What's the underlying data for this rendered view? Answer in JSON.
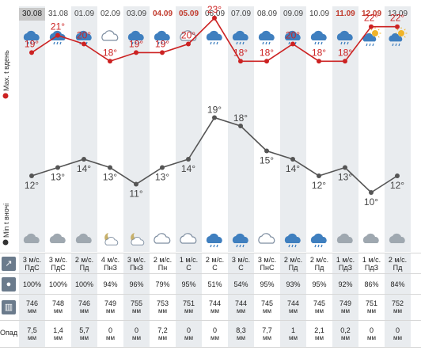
{
  "days": [
    {
      "date": "30.08",
      "weekend": false,
      "max": 19,
      "min": 12,
      "wind": "3 м/с.",
      "wind_dir": "ПдС",
      "humidity": "100%",
      "pressure": "746",
      "pressure_unit": "мм",
      "precip": "7,5",
      "precip_unit": "мм",
      "day_icon": "rain-cloud-icon",
      "night_icon": "cloud-icon"
    },
    {
      "date": "31.08",
      "weekend": false,
      "max": 21,
      "min": 13,
      "wind": "3 м/с.",
      "wind_dir": "ПдС",
      "humidity": "100%",
      "pressure": "748",
      "pressure_unit": "мм",
      "precip": "1,4",
      "precip_unit": "мм",
      "day_icon": "rain-cloud-icon",
      "night_icon": "cloud-icon"
    },
    {
      "date": "01.09",
      "weekend": false,
      "max": 20,
      "min": 14,
      "wind": "2 м/с.",
      "wind_dir": "Пд",
      "humidity": "100%",
      "pressure": "746",
      "pressure_unit": "мм",
      "precip": "5,7",
      "precip_unit": "мм",
      "day_icon": "rain-cloud-icon",
      "night_icon": "cloud-icon"
    },
    {
      "date": "02.09",
      "weekend": false,
      "max": 18,
      "min": 13,
      "wind": "4 м/с.",
      "wind_dir": "ПнЗ",
      "humidity": "94%",
      "pressure": "749",
      "pressure_unit": "мм",
      "precip": "0",
      "precip_unit": "мм",
      "day_icon": "cloud-outline-icon",
      "night_icon": "moon-cloud-icon"
    },
    {
      "date": "03.09",
      "weekend": false,
      "max": 19,
      "min": 11,
      "wind": "3 м/с.",
      "wind_dir": "ПнЗ",
      "humidity": "96%",
      "pressure": "755",
      "pressure_unit": "мм",
      "precip": "0",
      "precip_unit": "мм",
      "day_icon": "rain-cloud-icon",
      "night_icon": "moon-cloud-icon"
    },
    {
      "date": "04.09",
      "weekend": true,
      "max": 19,
      "min": 13,
      "wind": "2 м/с.",
      "wind_dir": "Пн",
      "humidity": "79%",
      "pressure": "753",
      "pressure_unit": "мм",
      "precip": "7,2",
      "precip_unit": "мм",
      "day_icon": "rain-cloud-icon",
      "night_icon": "cloud-outline-icon"
    },
    {
      "date": "05.09",
      "weekend": true,
      "max": 20,
      "min": 14,
      "wind": "1 м/с.",
      "wind_dir": "С",
      "humidity": "95%",
      "pressure": "751",
      "pressure_unit": "мм",
      "precip": "0",
      "precip_unit": "мм",
      "day_icon": "cloud-outline-icon",
      "night_icon": "cloud-outline-icon"
    },
    {
      "date": "06.09",
      "weekend": false,
      "max": 23,
      "min": 19,
      "wind": "2 м/с.",
      "wind_dir": "С",
      "humidity": "51%",
      "pressure": "744",
      "pressure_unit": "мм",
      "precip": "0",
      "precip_unit": "мм",
      "day_icon": "rain-cloud-icon",
      "night_icon": "rain-cloud-icon"
    },
    {
      "date": "07.09",
      "weekend": false,
      "max": 18,
      "min": 18,
      "wind": "3 м/с.",
      "wind_dir": "С",
      "humidity": "54%",
      "pressure": "744",
      "pressure_unit": "мм",
      "precip": "8,3",
      "precip_unit": "мм",
      "day_icon": "rain-cloud-icon",
      "night_icon": "rain-cloud-icon"
    },
    {
      "date": "08.09",
      "weekend": false,
      "max": 18,
      "min": 15,
      "wind": "3 м/с.",
      "wind_dir": "ПнС",
      "humidity": "95%",
      "pressure": "745",
      "pressure_unit": "мм",
      "precip": "7,7",
      "precip_unit": "мм",
      "day_icon": "rain-cloud-icon",
      "night_icon": "cloud-outline-icon"
    },
    {
      "date": "09.09",
      "weekend": false,
      "max": 20,
      "min": 14,
      "wind": "2 м/с.",
      "wind_dir": "Пд",
      "humidity": "93%",
      "pressure": "744",
      "pressure_unit": "мм",
      "precip": "1",
      "precip_unit": "мм",
      "day_icon": "rain-cloud-icon",
      "night_icon": "rain-cloud-icon"
    },
    {
      "date": "10.09",
      "weekend": false,
      "max": 18,
      "min": 12,
      "wind": "2 м/с.",
      "wind_dir": "Пд",
      "humidity": "95%",
      "pressure": "745",
      "pressure_unit": "мм",
      "precip": "2,1",
      "precip_unit": "мм",
      "day_icon": "rain-cloud-icon",
      "night_icon": "rain-cloud-icon"
    },
    {
      "date": "11.09",
      "weekend": true,
      "max": 18,
      "min": 13,
      "wind": "1 м/с.",
      "wind_dir": "ПдЗ",
      "humidity": "92%",
      "pressure": "749",
      "pressure_unit": "мм",
      "precip": "0,2",
      "precip_unit": "мм",
      "day_icon": "rain-cloud-icon",
      "night_icon": "cloud-icon"
    },
    {
      "date": "12.09",
      "weekend": true,
      "max": 22,
      "min": 10,
      "wind": "1 м/с.",
      "wind_dir": "ПдЗ",
      "humidity": "86%",
      "pressure": "751",
      "pressure_unit": "мм",
      "precip": "0",
      "precip_unit": "мм",
      "day_icon": "sun-cloud-icon",
      "night_icon": "cloud-icon"
    },
    {
      "date": "13.09",
      "weekend": false,
      "max": 22,
      "min": 12,
      "wind": "2 м/с.",
      "wind_dir": "Пд",
      "humidity": "84%",
      "pressure": "752",
      "pressure_unit": "мм",
      "precip": "0",
      "precip_unit": "мм",
      "day_icon": "sun-cloud-icon",
      "night_icon": "cloud-icon"
    }
  ],
  "labels": {
    "max_axis": "Мах. t вдень",
    "min_axis": "Min t вночі",
    "precip_row": "Опад"
  },
  "colors": {
    "max_line": "#cc2222",
    "min_line": "#555555",
    "weekend_date": "#c0392b"
  },
  "row_icons": [
    "wind-direction-icon",
    "humidity-icon",
    "pressure-icon"
  ],
  "chart_data": {
    "type": "line",
    "categories": [
      "30.08",
      "31.08",
      "01.09",
      "02.09",
      "03.09",
      "04.09",
      "05.09",
      "06.09",
      "07.09",
      "08.09",
      "09.09",
      "10.09",
      "11.09",
      "12.09",
      "13.09"
    ],
    "series": [
      {
        "name": "Мах. t вдень",
        "values": [
          19,
          21,
          20,
          18,
          19,
          19,
          20,
          23,
          18,
          18,
          20,
          18,
          18,
          22,
          22
        ]
      },
      {
        "name": "Min t вночі",
        "values": [
          12,
          13,
          14,
          13,
          11,
          13,
          14,
          19,
          18,
          15,
          14,
          12,
          13,
          10,
          12
        ]
      }
    ],
    "unit": "°"
  }
}
